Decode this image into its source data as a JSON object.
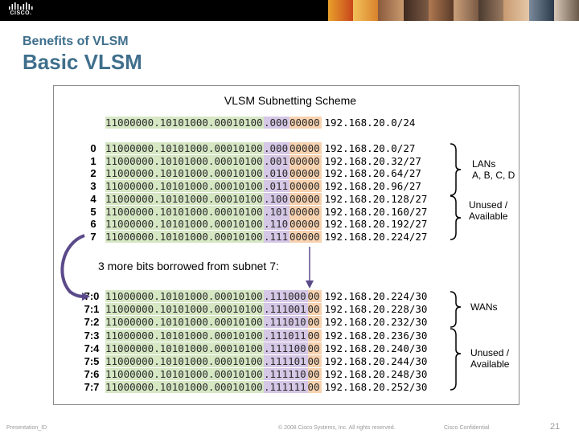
{
  "header": {
    "logo_text": "CISCO."
  },
  "slide": {
    "subtitle": "Benefits of VLSM",
    "title": "Basic VLSM"
  },
  "figure": {
    "title": "VLSM Subnetting Scheme",
    "base_row": {
      "net": "11000000.10101000.00010100",
      "sub": ".000",
      "host": "00000",
      "addr": "192.168.20.0/24"
    },
    "first_level_rows": [
      {
        "index": "0",
        "net": "11000000.10101000.00010100",
        "sub": ".000",
        "host": "00000",
        "addr": "192.168.20.0/27"
      },
      {
        "index": "1",
        "net": "11000000.10101000.00010100",
        "sub": ".001",
        "host": "00000",
        "addr": "192.168.20.32/27"
      },
      {
        "index": "2",
        "net": "11000000.10101000.00010100",
        "sub": ".010",
        "host": "00000",
        "addr": "192.168.20.64/27"
      },
      {
        "index": "3",
        "net": "11000000.10101000.00010100",
        "sub": ".011",
        "host": "00000",
        "addr": "192.168.20.96/27"
      },
      {
        "index": "4",
        "net": "11000000.10101000.00010100",
        "sub": ".100",
        "host": "00000",
        "addr": "192.168.20.128/27"
      },
      {
        "index": "5",
        "net": "11000000.10101000.00010100",
        "sub": ".101",
        "host": "00000",
        "addr": "192.168.20.160/27"
      },
      {
        "index": "6",
        "net": "11000000.10101000.00010100",
        "sub": ".110",
        "host": "00000",
        "addr": "192.168.20.192/27"
      },
      {
        "index": "7",
        "net": "11000000.10101000.00010100",
        "sub": ".111",
        "host": "00000",
        "addr": "192.168.20.224/27"
      }
    ],
    "borrow_label": "3 more bits borrowed from subnet 7:",
    "second_level_rows": [
      {
        "index": "7:0",
        "net": "11000000.10101000.00010100",
        "sub": ".111000",
        "host": "00",
        "addr": "192.168.20.224/30"
      },
      {
        "index": "7:1",
        "net": "11000000.10101000.00010100",
        "sub": ".111001",
        "host": "00",
        "addr": "192.168.20.228/30"
      },
      {
        "index": "7:2",
        "net": "11000000.10101000.00010100",
        "sub": ".111010",
        "host": "00",
        "addr": "192.168.20.232/30"
      },
      {
        "index": "7:3",
        "net": "11000000.10101000.00010100",
        "sub": ".111011",
        "host": "00",
        "addr": "192.168.20.236/30"
      },
      {
        "index": "7:4",
        "net": "11000000.10101000.00010100",
        "sub": ".111100",
        "host": "00",
        "addr": "192.168.20.240/30"
      },
      {
        "index": "7:5",
        "net": "11000000.10101000.00010100",
        "sub": ".111101",
        "host": "00",
        "addr": "192.168.20.244/30"
      },
      {
        "index": "7:6",
        "net": "11000000.10101000.00010100",
        "sub": ".111110",
        "host": "00",
        "addr": "192.168.20.248/30"
      },
      {
        "index": "7:7",
        "net": "11000000.10101000.00010100",
        "sub": ".111111",
        "host": "00",
        "addr": "192.168.20.252/30"
      }
    ],
    "brace_labels": {
      "lans_line1": "LANs",
      "lans_line2": "A, B, C, D",
      "unused1_line1": "Unused /",
      "unused1_line2": "Available",
      "wans": "WANs",
      "unused2_line1": "Unused /",
      "unused2_line2": "Available"
    },
    "colors": {
      "network_bits": "#d6e7c4",
      "subnet_bits": "#d5c7e6",
      "host_bits": "#f7d2b0",
      "arrow": "#5b4a8a"
    }
  },
  "footer": {
    "left": "Presentation_ID",
    "center": "© 2008 Cisco Systems, Inc. All rights reserved.",
    "right": "Cisco Confidential",
    "page": "21"
  }
}
